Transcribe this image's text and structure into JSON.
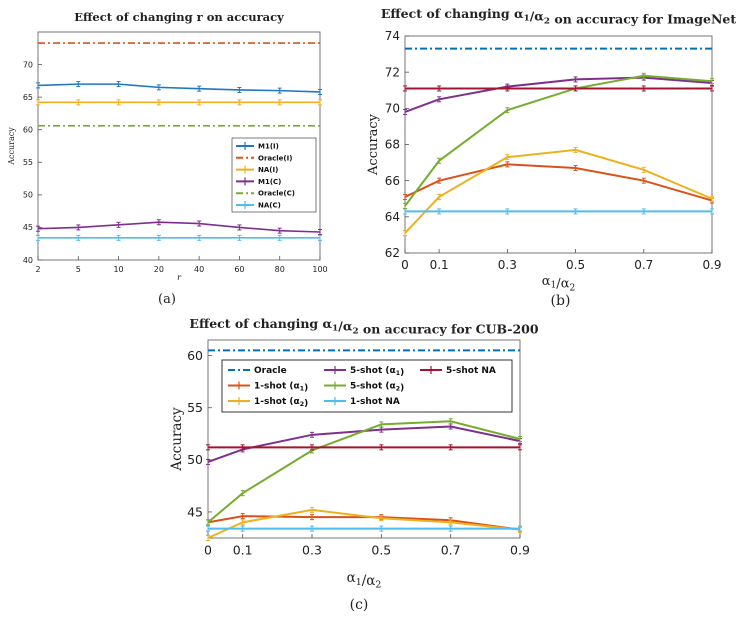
{
  "chart_data": [
    {
      "type": "line",
      "title": "Effect of changing r on accuracy",
      "xlabel": "r",
      "ylabel": "Accuracy",
      "caption": "(a)",
      "categories": [
        "2",
        "5",
        "10",
        "20",
        "40",
        "60",
        "80",
        "100"
      ],
      "ylim": [
        40,
        75
      ],
      "yticks": [
        40,
        45,
        50,
        55,
        60,
        65,
        70
      ],
      "legend_position": "center-right",
      "series": [
        {
          "name": "M1(I)",
          "color": "#1f77c4",
          "style": "solid",
          "values": [
            66.8,
            67.0,
            67.0,
            66.5,
            66.3,
            66.1,
            66.0,
            65.8
          ]
        },
        {
          "name": "Oracle(I)",
          "color": "#d95319",
          "style": "dashdot",
          "values": [
            73.3,
            73.3,
            73.3,
            73.3,
            73.3,
            73.3,
            73.3,
            73.3
          ]
        },
        {
          "name": "NA(I)",
          "color": "#edb120",
          "style": "solid",
          "values": [
            64.2,
            64.2,
            64.2,
            64.2,
            64.2,
            64.2,
            64.2,
            64.2
          ]
        },
        {
          "name": "M1(C)",
          "color": "#7e2f8e",
          "style": "solid",
          "values": [
            44.8,
            45.0,
            45.4,
            45.8,
            45.6,
            45.0,
            44.5,
            44.3
          ]
        },
        {
          "name": "Oracle(C)",
          "color": "#77ac30",
          "style": "dashdot",
          "values": [
            60.6,
            60.6,
            60.6,
            60.6,
            60.6,
            60.6,
            60.6,
            60.6
          ]
        },
        {
          "name": "NA(C)",
          "color": "#4dbeee",
          "style": "solid",
          "values": [
            43.4,
            43.4,
            43.4,
            43.4,
            43.4,
            43.4,
            43.4,
            43.4
          ]
        }
      ]
    },
    {
      "type": "line",
      "title": "Effect of changing α1/α2 on accuracy for ImageNet",
      "xlabel": "α1/α2",
      "ylabel": "Accuracy",
      "caption": "(b)",
      "x": [
        0,
        0.1,
        0.3,
        0.5,
        0.7,
        0.9
      ],
      "xticks": [
        "0",
        "0.1",
        "0.3",
        "0.5",
        "0.7",
        "0.9"
      ],
      "ylim": [
        62,
        74
      ],
      "yticks": [
        62,
        64,
        66,
        68,
        70,
        72,
        74
      ],
      "series": [
        {
          "color": "#0072bd",
          "style": "dashdot",
          "values": [
            73.3,
            73.3,
            73.3,
            73.3,
            73.3,
            73.3
          ]
        },
        {
          "color": "#d95319",
          "style": "solid",
          "values": [
            65.1,
            66.0,
            66.9,
            66.7,
            66.0,
            64.9
          ]
        },
        {
          "color": "#edb120",
          "style": "solid",
          "values": [
            63.1,
            65.1,
            67.3,
            67.7,
            66.6,
            65.0
          ]
        },
        {
          "color": "#4dbeee",
          "style": "solid",
          "values": [
            64.3,
            64.3,
            64.3,
            64.3,
            64.3,
            64.3
          ]
        },
        {
          "color": "#7e2f8e",
          "style": "solid",
          "values": [
            69.8,
            70.5,
            71.2,
            71.6,
            71.7,
            71.4
          ]
        },
        {
          "color": "#77ac30",
          "style": "solid",
          "values": [
            64.6,
            67.1,
            69.9,
            71.1,
            71.8,
            71.5
          ]
        },
        {
          "color": "#a2142f",
          "style": "solid",
          "values": [
            71.1,
            71.1,
            71.1,
            71.1,
            71.1,
            71.1
          ]
        }
      ]
    },
    {
      "type": "line",
      "title": "Effect of changing α1/α2 on accuracy for CUB-200",
      "xlabel": "α1/α2",
      "ylabel": "Accuracy",
      "caption": "(c)",
      "x": [
        0,
        0.1,
        0.3,
        0.5,
        0.7,
        0.9
      ],
      "xticks": [
        "0",
        "0.1",
        "0.3",
        "0.5",
        "0.7",
        "0.9"
      ],
      "ylim": [
        42.5,
        61.5
      ],
      "yticks": [
        45,
        50,
        55,
        60
      ],
      "legend_position": "top",
      "series": [
        {
          "name": "Oracle",
          "color": "#0072bd",
          "style": "dashdot",
          "values": [
            60.5,
            60.5,
            60.5,
            60.5,
            60.5,
            60.5
          ]
        },
        {
          "name": "1-shot (α1)",
          "color": "#d95319",
          "style": "solid",
          "values": [
            44.0,
            44.6,
            44.5,
            44.5,
            44.2,
            43.3
          ]
        },
        {
          "name": "1-shot (α2)",
          "color": "#edb120",
          "style": "solid",
          "values": [
            42.5,
            44.0,
            45.2,
            44.4,
            44.0,
            43.3
          ]
        },
        {
          "name": "5-shot (α1)",
          "color": "#7e2f8e",
          "style": "solid",
          "values": [
            49.8,
            51.0,
            52.4,
            52.9,
            53.2,
            51.8
          ]
        },
        {
          "name": "5-shot (α2)",
          "color": "#77ac30",
          "style": "solid",
          "values": [
            44.0,
            46.8,
            50.9,
            53.4,
            53.7,
            52.0
          ]
        },
        {
          "name": "1-shot NA",
          "color": "#4dbeee",
          "style": "solid",
          "values": [
            43.4,
            43.4,
            43.4,
            43.4,
            43.4,
            43.4
          ]
        },
        {
          "name": "5-shot NA",
          "color": "#a2142f",
          "style": "solid",
          "values": [
            51.2,
            51.2,
            51.2,
            51.2,
            51.2,
            51.2
          ]
        }
      ]
    }
  ]
}
